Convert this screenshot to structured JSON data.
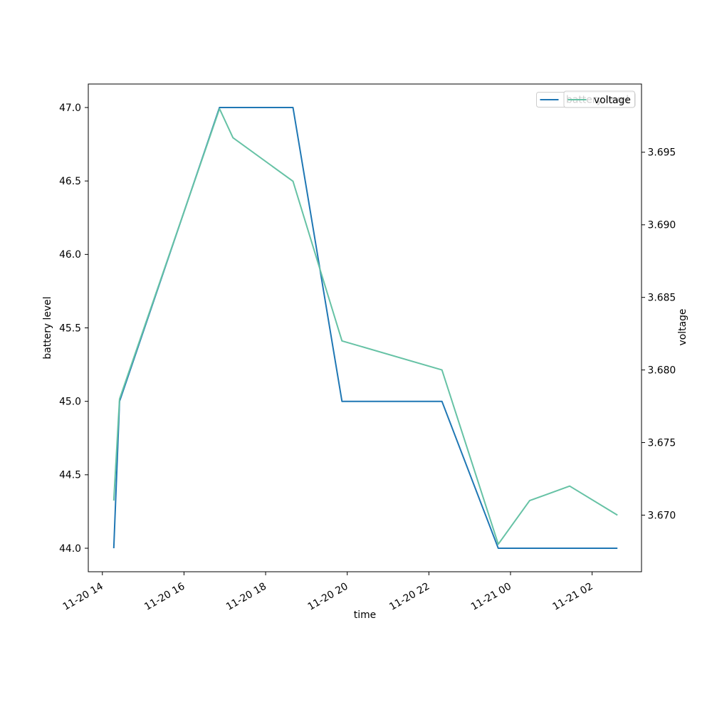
{
  "figure": {
    "background": "#ffffff"
  },
  "chart_data": {
    "type": "line",
    "title": "",
    "xlabel": "time",
    "ylabel_left": "battery level",
    "ylabel_right": "voltage",
    "legend_position": "upper right",
    "grid": false,
    "axis_color": "#000000",
    "legend_edge_color": "#cccccc",
    "x_tick_labels": [
      "11-20 14",
      "11-20 16",
      "11-20 18",
      "11-20 20",
      "11-20 22",
      "11-21 00",
      "11-21 02"
    ],
    "x_tick_hours": [
      14,
      16,
      18,
      20,
      22,
      24,
      26
    ],
    "xlim_hours": [
      13.655,
      27.21
    ],
    "y_tick_labels_left": [
      "44.0",
      "44.5",
      "45.0",
      "45.5",
      "46.0",
      "46.5",
      "47.0"
    ],
    "y_ticks_left": [
      44.0,
      44.5,
      45.0,
      45.5,
      46.0,
      46.5,
      47.0
    ],
    "ylim_left": [
      43.84,
      47.16
    ],
    "y_tick_labels_right": [
      "3.670",
      "3.675",
      "3.680",
      "3.685",
      "3.690",
      "3.695"
    ],
    "y_ticks_right": [
      3.67,
      3.675,
      3.68,
      3.685,
      3.69,
      3.695
    ],
    "ylim_right": [
      3.6661,
      3.6997
    ],
    "x_times": [
      "11-20 14:17",
      "11-20 14:25",
      "11-20 16:52",
      "11-20 17:12",
      "11-20 18:40",
      "11-20 19:52",
      "11-20 22:19",
      "11-20 23:42",
      "11-21 00:28",
      "11-21 01:27",
      "11-21 02:37"
    ],
    "x_hours": [
      14.28,
      14.42,
      16.87,
      17.2,
      18.67,
      19.87,
      22.32,
      23.7,
      24.47,
      25.45,
      26.62
    ],
    "series": [
      {
        "name": "battery level",
        "axis": "left",
        "color": "#1f77b4",
        "values": [
          44,
          45,
          47,
          47,
          47,
          45,
          45,
          44,
          44,
          44,
          44
        ]
      },
      {
        "name": "voltage",
        "axis": "right",
        "color": "#66c2a5",
        "values": [
          3.671,
          3.678,
          3.698,
          3.696,
          3.693,
          3.682,
          3.68,
          3.668,
          3.671,
          3.672,
          3.67
        ]
      }
    ]
  }
}
